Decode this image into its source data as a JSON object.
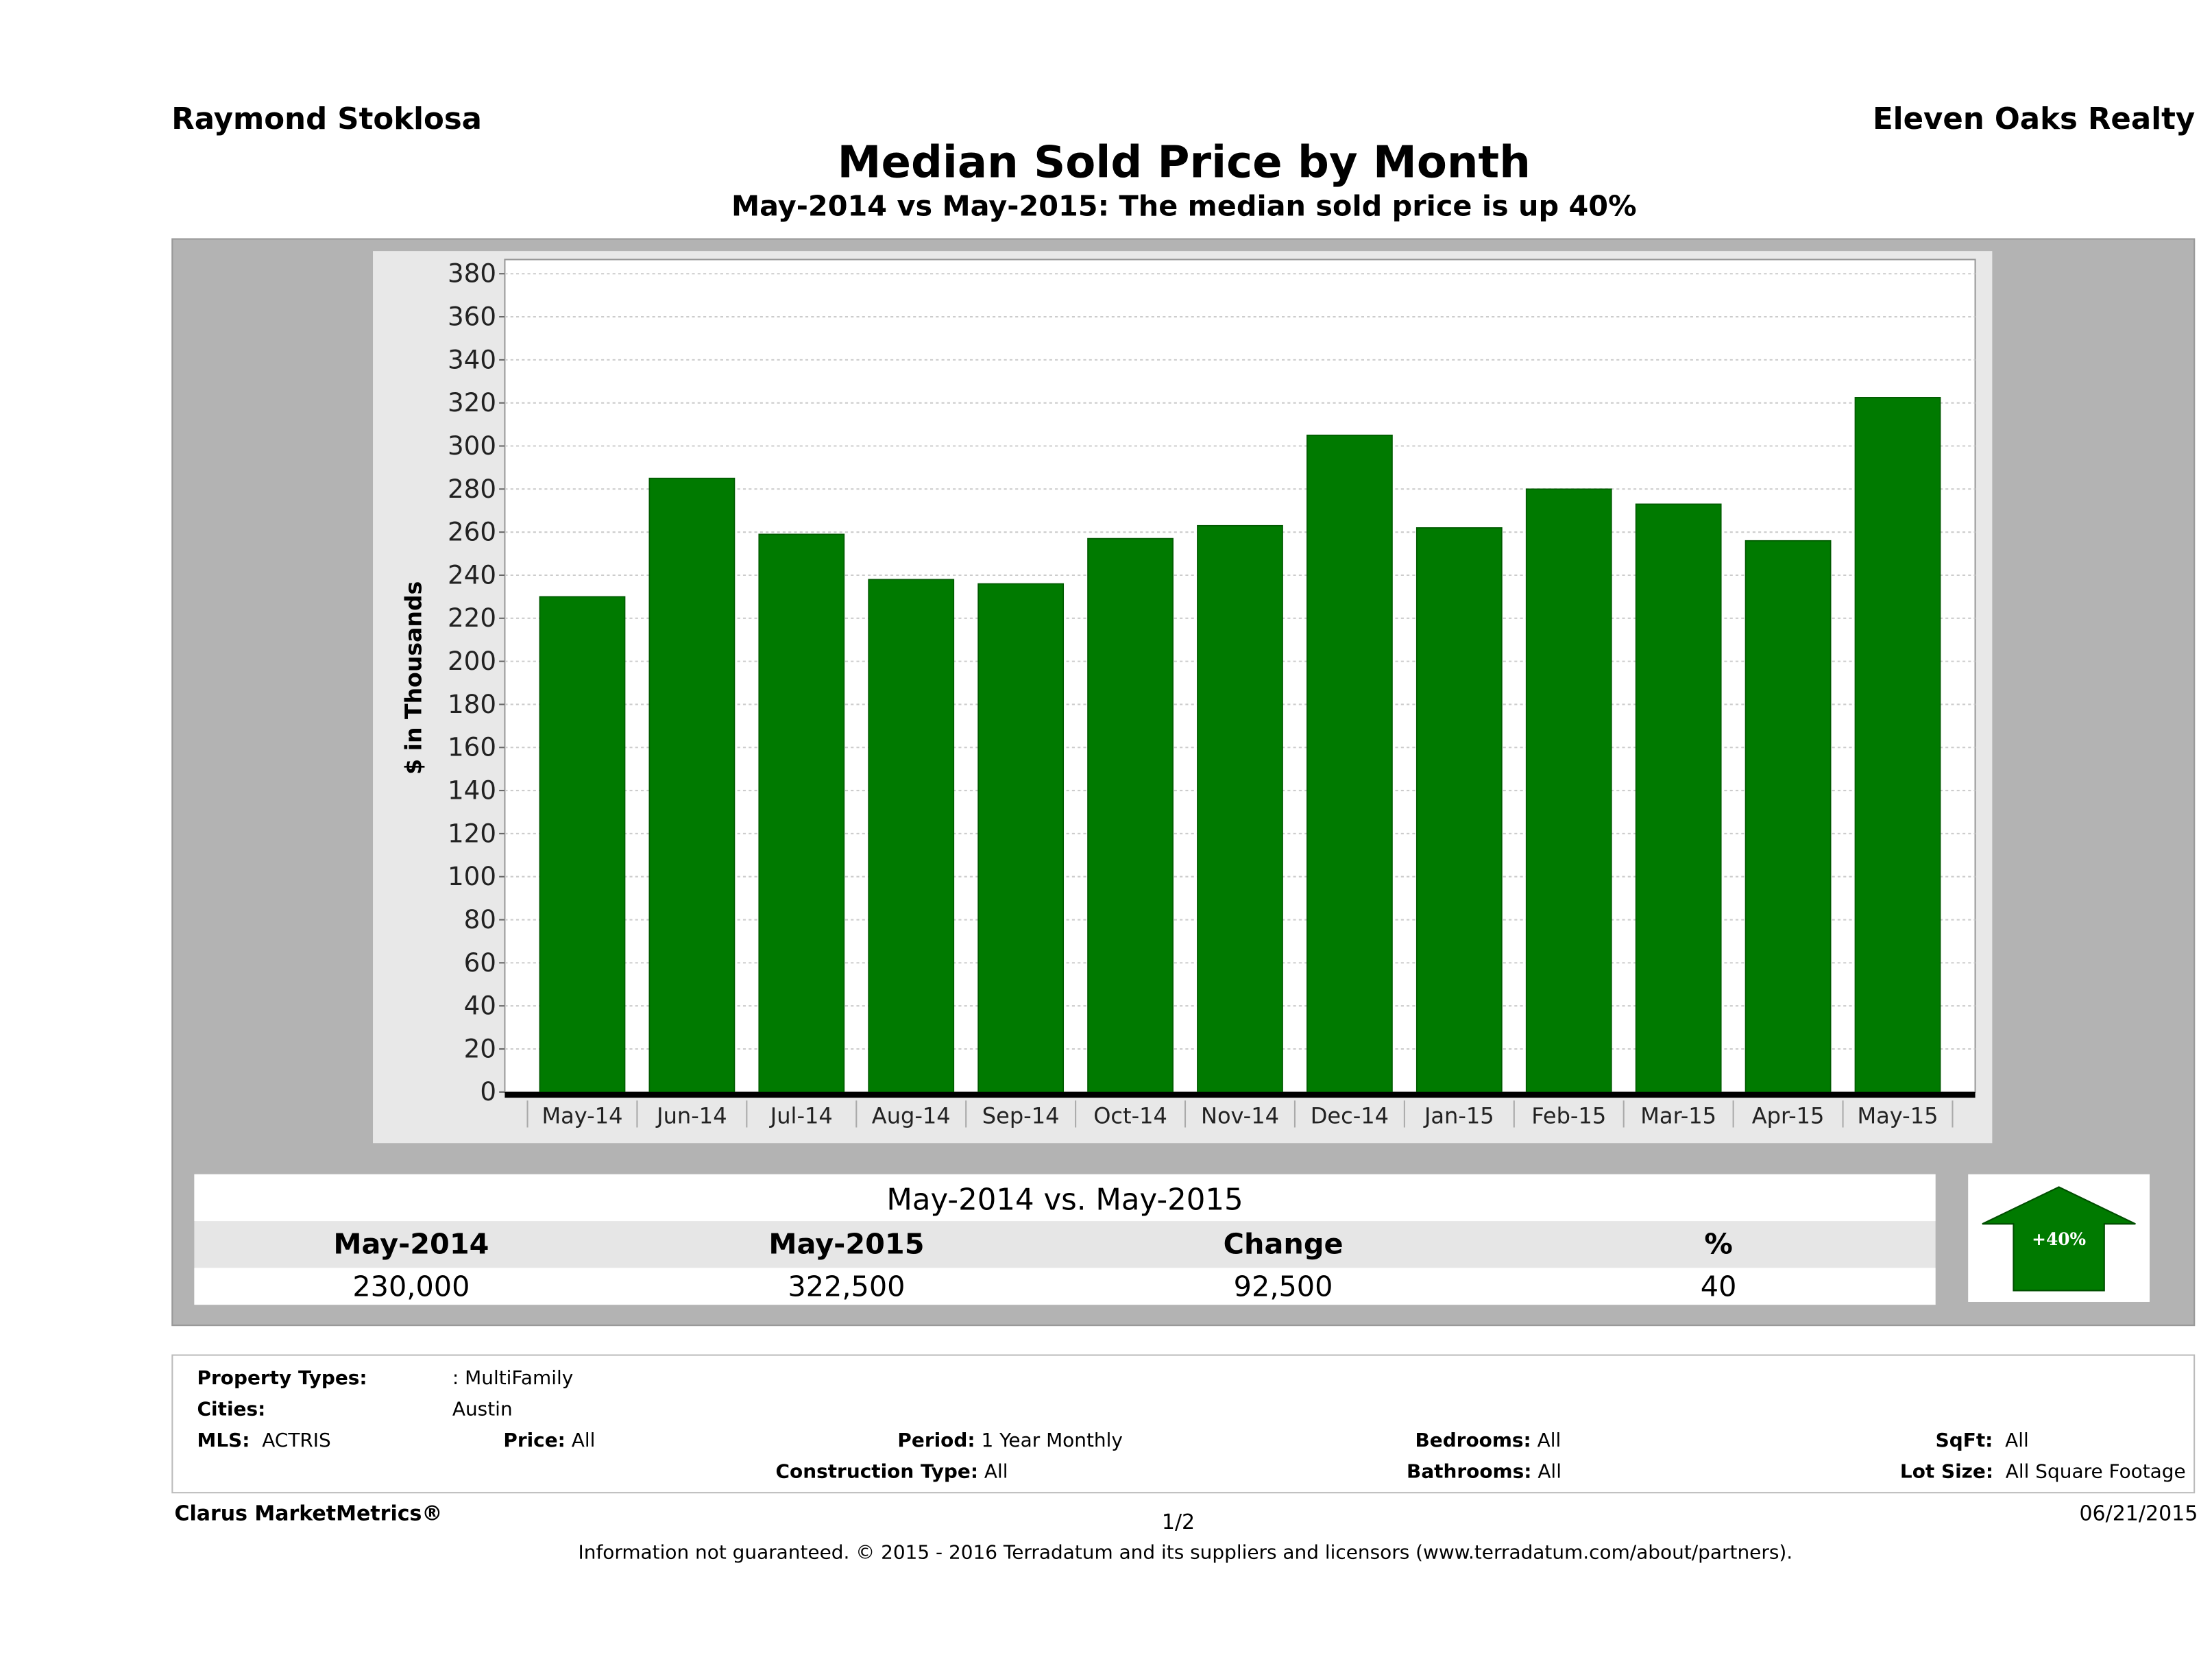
{
  "header": {
    "agent": "Raymond Stoklosa",
    "company": "Eleven Oaks Realty"
  },
  "chart_data": {
    "type": "bar",
    "title": "Median Sold Price by Month",
    "subtitle": "May-2014 vs May-2015: The median sold price is up 40%",
    "ylabel": "$ in Thousands",
    "xlabel": "",
    "ylim": [
      0,
      380
    ],
    "yticks": [
      0,
      20,
      40,
      60,
      80,
      100,
      120,
      140,
      160,
      180,
      200,
      220,
      240,
      260,
      280,
      300,
      320,
      340,
      360,
      380
    ],
    "grid": true,
    "categories": [
      "May-14",
      "Jun-14",
      "Jul-14",
      "Aug-14",
      "Sep-14",
      "Oct-14",
      "Nov-14",
      "Dec-14",
      "Jan-15",
      "Feb-15",
      "Mar-15",
      "Apr-15",
      "May-15"
    ],
    "values": [
      230,
      285,
      259,
      238,
      236,
      257,
      263,
      305,
      262,
      280,
      273,
      256,
      322.5
    ],
    "bar_color": "#007a00"
  },
  "summary": {
    "title": "May-2014 vs. May-2015",
    "headers": [
      "May-2014",
      "May-2015",
      "Change",
      "%"
    ],
    "values": [
      "230,000",
      "322,500",
      "92,500",
      "40"
    ],
    "badge": "+40%",
    "badge_color": "#007a00"
  },
  "filters": {
    "property_types_label": "Property Types:",
    "property_types": ": MultiFamily",
    "cities_label": "Cities:",
    "cities": "Austin",
    "mls_label": "MLS:",
    "mls": "ACTRIS",
    "price_label": "Price:",
    "price": "All",
    "period_label": "Period:",
    "period": "1 Year Monthly",
    "bedrooms_label": "Bedrooms:",
    "bedrooms": "All",
    "sqft_label": "SqFt:",
    "sqft": "All",
    "construction_label": "Construction Type:",
    "construction": "All",
    "bathrooms_label": "Bathrooms:",
    "bathrooms": "All",
    "lot_label": "Lot Size:",
    "lot": "All Square Footage"
  },
  "footer": {
    "brand": "Clarus MarketMetrics®",
    "page": "1/2",
    "date": "06/21/2015",
    "disclaimer": "Information not guaranteed. © 2015 - 2016 Terradatum and its suppliers and licensors (www.terradatum.com/about/partners)."
  }
}
